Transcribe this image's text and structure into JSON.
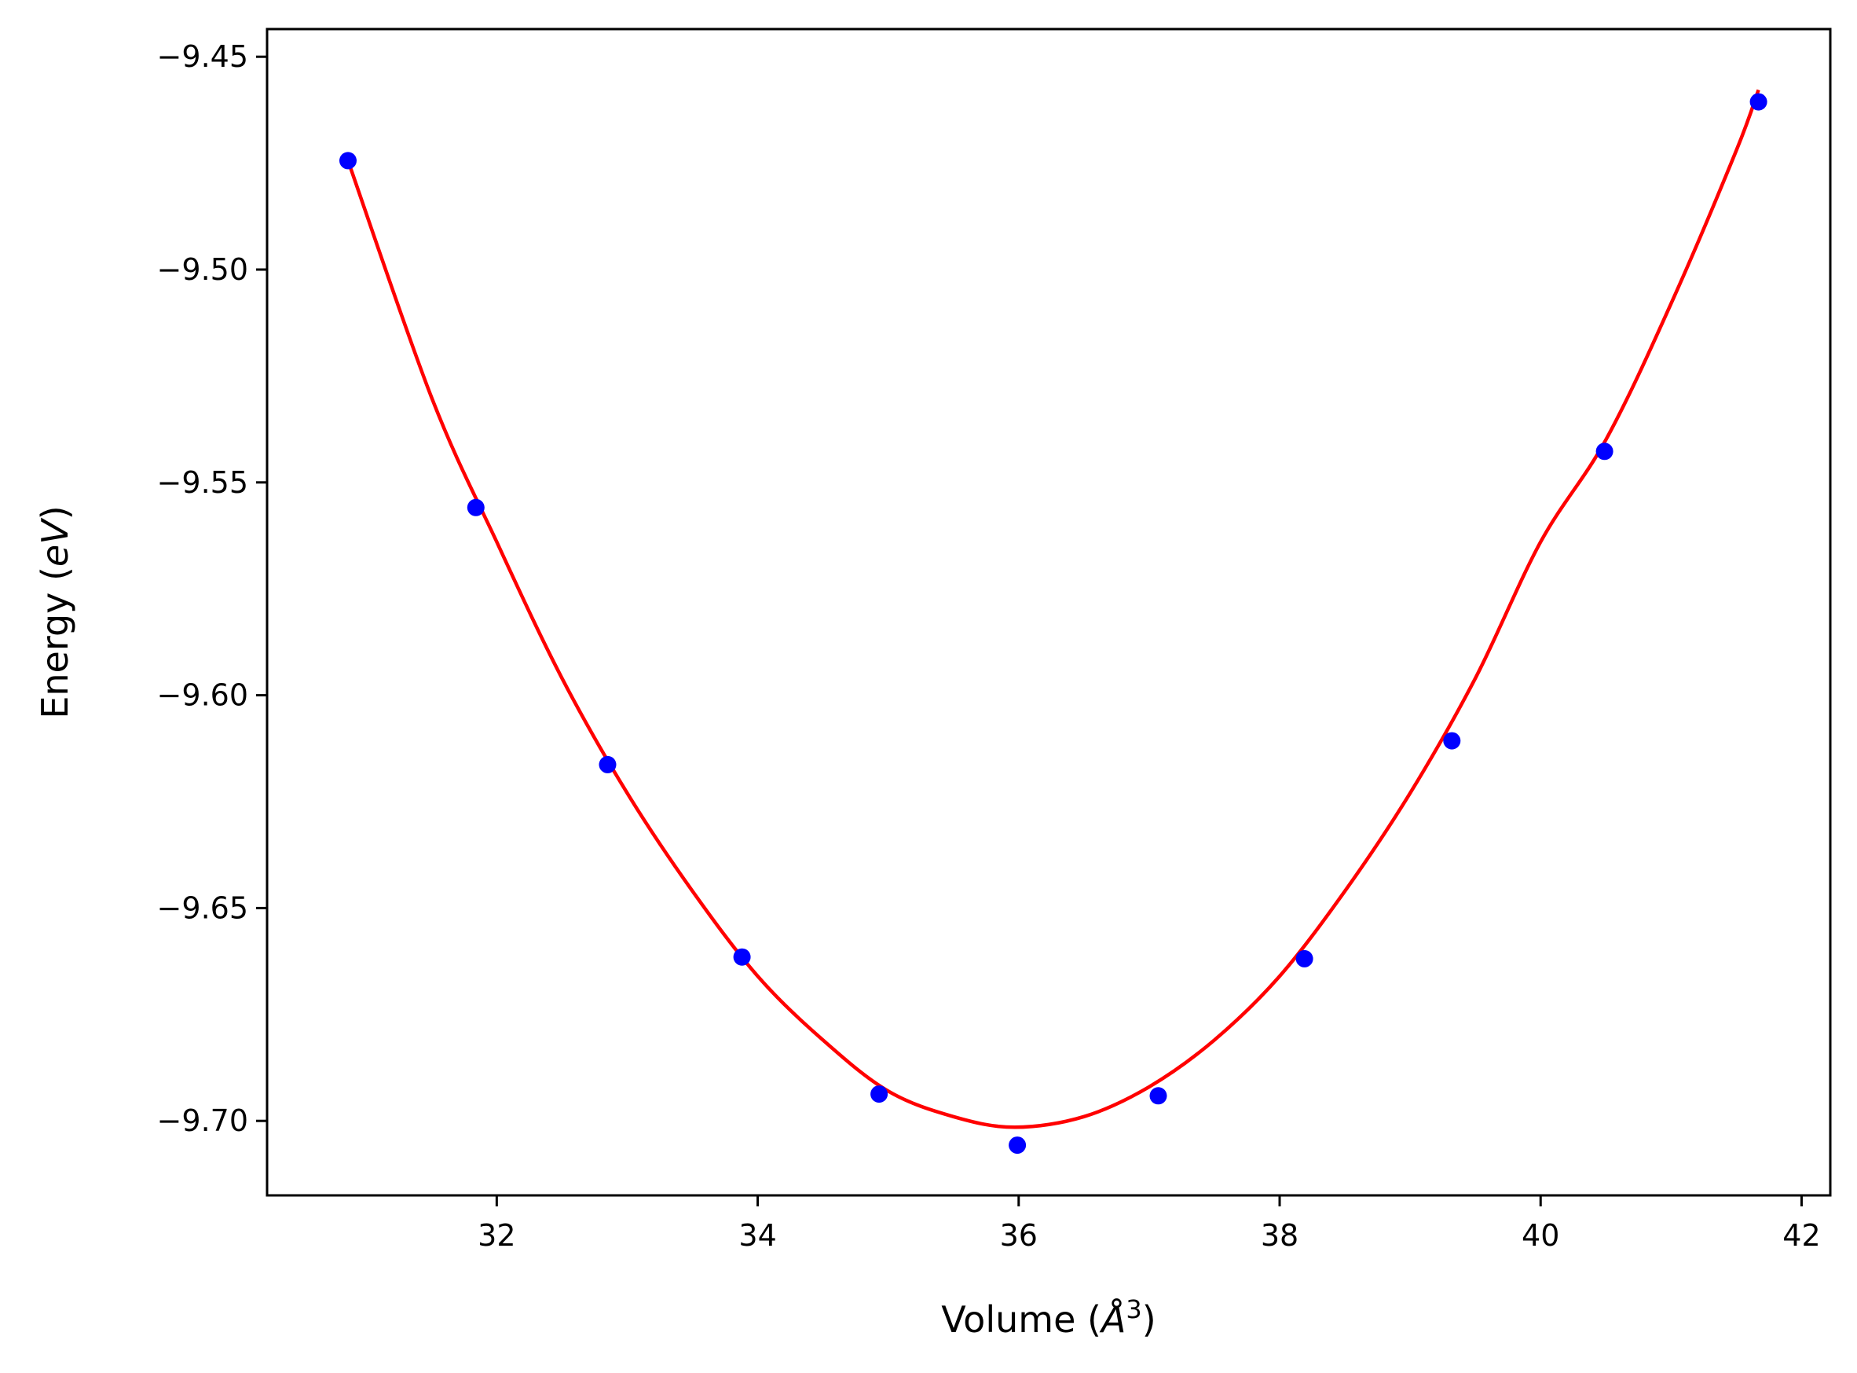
{
  "chart_data": {
    "type": "scatter",
    "title": "",
    "xlabel_prefix": "Volume (",
    "xlabel_symbol": "Å",
    "xlabel_power": "3",
    "xlabel_suffix": ")",
    "ylabel_prefix": "Energy (",
    "ylabel_unit": "eV",
    "ylabel_suffix": ")",
    "xlim": [
      30.24,
      42.22
    ],
    "ylim": [
      -9.7175,
      -9.4435
    ],
    "xticks": [
      32,
      34,
      36,
      38,
      40,
      42
    ],
    "xtick_labels": [
      "32",
      "34",
      "36",
      "38",
      "40",
      "42"
    ],
    "yticks": [
      -9.7,
      -9.65,
      -9.6,
      -9.55,
      -9.5,
      -9.45
    ],
    "ytick_labels": [
      "−9.70",
      "−9.65",
      "−9.60",
      "−9.55",
      "−9.50",
      "−9.45"
    ],
    "grid": false,
    "series": [
      {
        "kind": "points",
        "color": "#0000ff",
        "x": [
          30.86,
          31.84,
          32.85,
          33.88,
          34.93,
          35.99,
          37.07,
          38.19,
          39.32,
          40.49,
          41.67
        ],
        "y": [
          -9.4744,
          -9.5559,
          -9.6163,
          -9.6615,
          -9.6937,
          -9.7057,
          -9.6941,
          -9.6619,
          -9.6107,
          -9.5427,
          -9.4606
        ]
      },
      {
        "kind": "fit-line",
        "color": "#ff0000",
        "x": [
          30.86,
          31.5,
          32.0,
          32.5,
          33.0,
          33.5,
          34.0,
          34.5,
          35.0,
          35.5,
          35.97,
          36.5,
          37.0,
          37.5,
          38.0,
          38.5,
          39.0,
          39.5,
          40.0,
          40.5,
          41.0,
          41.5,
          41.67
        ],
        "y": [
          -9.4744,
          -9.53,
          -9.564,
          -9.596,
          -9.623,
          -9.646,
          -9.666,
          -9.681,
          -9.693,
          -9.699,
          -9.7015,
          -9.699,
          -9.692,
          -9.681,
          -9.666,
          -9.646,
          -9.623,
          -9.596,
          -9.564,
          -9.54,
          -9.508,
          -9.472,
          -9.4578
        ]
      }
    ]
  }
}
